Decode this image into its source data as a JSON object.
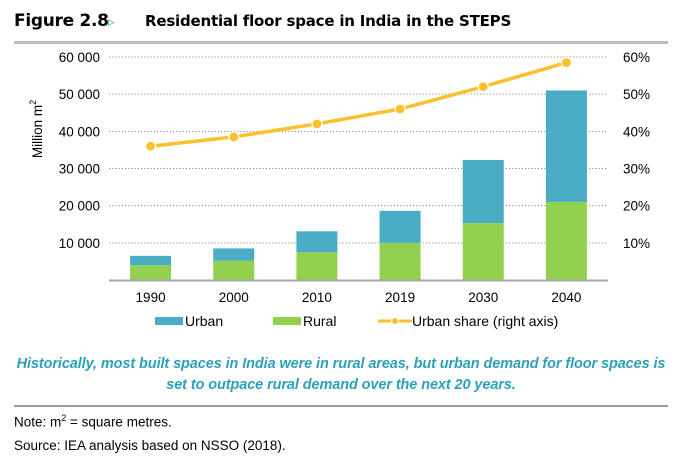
{
  "header": {
    "figure_label": "Figure 2.8",
    "figure_arrow_icon": "▹",
    "title": "Residential floor space in India in the STEPS"
  },
  "chart_data": {
    "type": "bar",
    "stacked": true,
    "title": "Residential floor space in India in the STEPS",
    "categories": [
      "1990",
      "2000",
      "2010",
      "2019",
      "2030",
      "2040"
    ],
    "series": [
      {
        "name": "Rural",
        "kind": "bar",
        "axis": "left",
        "color": "#92d050",
        "values": [
          4000,
          5200,
          7500,
          10000,
          15300,
          21000
        ]
      },
      {
        "name": "Urban",
        "kind": "bar",
        "axis": "left",
        "color": "#4bacc6",
        "values": [
          2500,
          3300,
          5600,
          8600,
          17000,
          30000
        ]
      },
      {
        "name": "Urban share (right axis)",
        "kind": "line",
        "axis": "right",
        "color": "#fbc02d",
        "values": [
          36,
          38.5,
          42,
          46,
          52,
          58.5
        ]
      }
    ],
    "xlabel": "",
    "ylabel": "Million m²",
    "ylabel_main": "Million m",
    "ylabel_sup": "2",
    "ylim": [
      0,
      60000
    ],
    "yticks": [
      10000,
      20000,
      30000,
      40000,
      50000,
      60000
    ],
    "ytick_labels": [
      "10 000",
      "20 000",
      "30 000",
      "40 000",
      "50 000",
      "60 000"
    ],
    "y2lim": [
      0,
      60
    ],
    "y2ticks": [
      10,
      20,
      30,
      40,
      50,
      60
    ],
    "y2tick_labels": [
      "10%",
      "20%",
      "30%",
      "40%",
      "50%",
      "60%"
    ],
    "grid": "horizontal-dotted",
    "legend_position": "bottom"
  },
  "legend": {
    "urban": "Urban",
    "rural": "Rural",
    "share": "Urban share (right axis)"
  },
  "caption": "Historically, most built spaces in India were in rural areas, but urban demand for floor spaces is set to outpace rural demand over the next 20 years.",
  "note": {
    "prefix": "Note: m",
    "sup": "2",
    "suffix": " = square metres."
  },
  "source": "Source: IEA analysis based on NSSO (2018)."
}
